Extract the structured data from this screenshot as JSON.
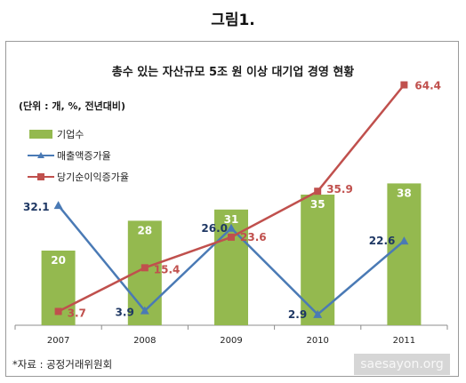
{
  "heading": "그림1.",
  "source_note": "*자료 : 공정거래위원회",
  "watermark": "saesayon.org",
  "colors": {
    "bar": "#94b94f",
    "bar_label": "#ffffff",
    "revenue_line": "#4a7ab5",
    "revenue_label": "#1f3864",
    "profit_line": "#c0504d",
    "profit_label": "#c0504d"
  },
  "chart_data": {
    "type": "bar+line",
    "title": "총수 있는 자산규모 5조 원 이상 대기업 경영 현황",
    "unit_note": "(단위 : 개, %, 전년대비)",
    "categories": [
      "2007",
      "2008",
      "2009",
      "2010",
      "2011"
    ],
    "legend_position": "top-left",
    "grid": false,
    "ylim": [
      0,
      70
    ],
    "series": [
      {
        "name": "기업수",
        "kind": "bar",
        "values": [
          20,
          28,
          31,
          35,
          38
        ],
        "labels": [
          "20",
          "28",
          "31",
          "35",
          "38"
        ]
      },
      {
        "name": "매출액증가율",
        "kind": "line",
        "marker": "triangle",
        "values": [
          32.1,
          3.9,
          26.0,
          2.9,
          22.6
        ],
        "labels": [
          "32.1",
          "3.9",
          "26.0",
          "2.9",
          "22.6"
        ]
      },
      {
        "name": "당기순이익증가율",
        "kind": "line",
        "marker": "square",
        "values": [
          3.7,
          15.4,
          23.6,
          35.9,
          64.4
        ],
        "labels": [
          "3.7",
          "15.4",
          "23.6",
          "35.9",
          "64.4"
        ]
      }
    ]
  }
}
